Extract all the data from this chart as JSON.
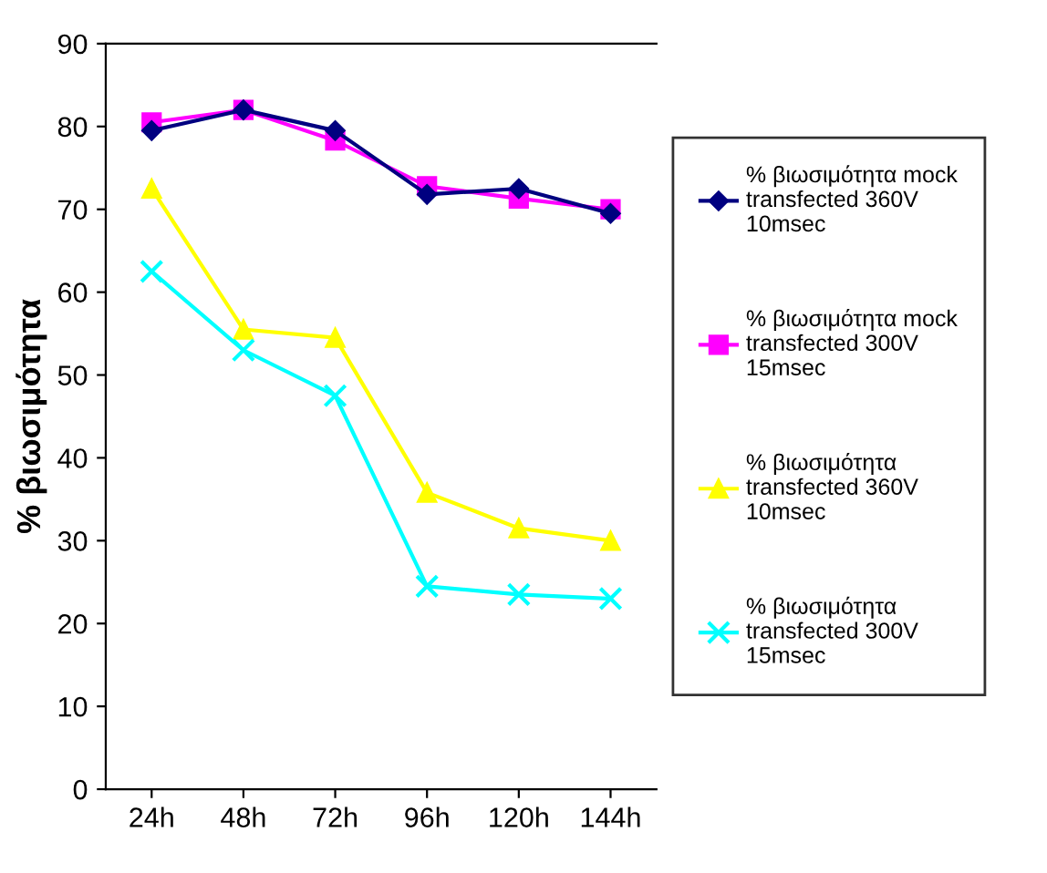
{
  "chart_data": {
    "type": "line",
    "ylabel": "% βιωσιμότητα",
    "categories": [
      "24h",
      "48h",
      "72h",
      "96h",
      "120h",
      "144h"
    ],
    "series": [
      {
        "name": "% βιωσιμότητα mock transfected 360V 10msec",
        "color": "#000080",
        "marker": "diamond",
        "values": [
          79.5,
          82,
          79.5,
          71.8,
          72.5,
          69.5
        ]
      },
      {
        "name": "% βιωσιμότητα mock transfected 300V 15msec",
        "color": "#ff00ff",
        "marker": "square",
        "values": [
          80.5,
          82,
          78.3,
          72.8,
          71.3,
          70
        ]
      },
      {
        "name": "% βιωσιμότητα transfected 360V 10msec",
        "color": "#ffff00",
        "marker": "triangle",
        "values": [
          72.5,
          55.5,
          54.5,
          35.8,
          31.5,
          30
        ]
      },
      {
        "name": "% βιωσιμότητα transfected 300V 15msec",
        "color": "#00ffff",
        "marker": "cross",
        "values": [
          62.5,
          53,
          47.5,
          24.5,
          23.5,
          23
        ]
      }
    ],
    "ylim": [
      0,
      90
    ],
    "yticks": [
      0,
      10,
      20,
      30,
      40,
      50,
      60,
      70,
      80,
      90
    ],
    "grid": false,
    "legend": "right",
    "line_style": "solid"
  }
}
